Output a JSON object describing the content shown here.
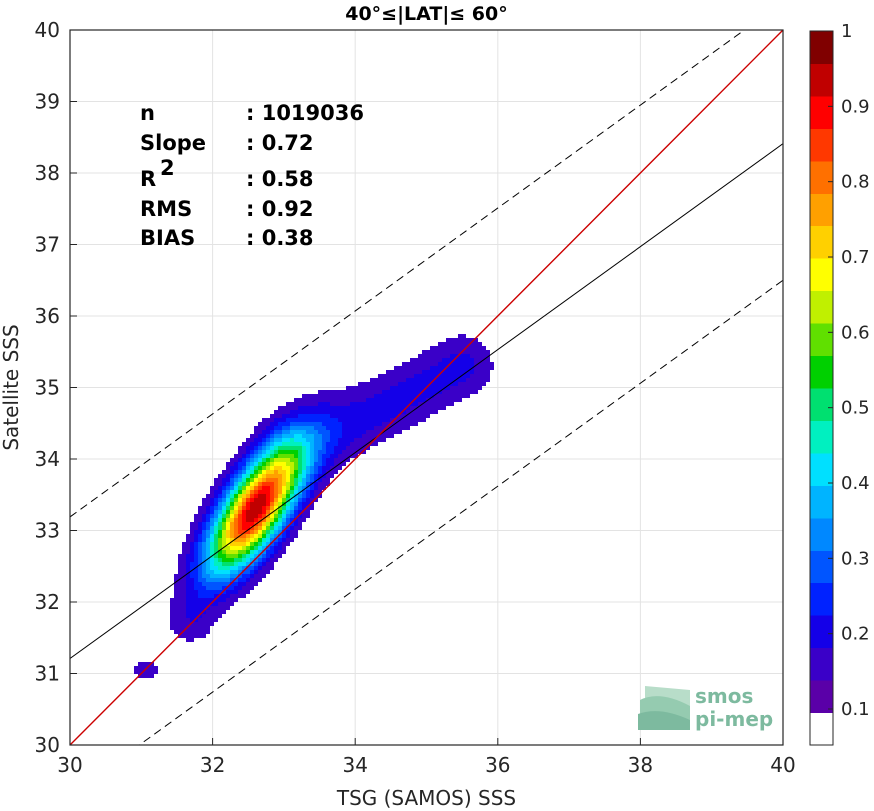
{
  "chart_data": {
    "type": "heatmap",
    "title": "40°≤|LAT|≤ 60°",
    "xlabel": "TSG (SAMOS) SSS",
    "ylabel": "Satellite SSS",
    "xlim": [
      30,
      40
    ],
    "ylim": [
      30,
      40
    ],
    "xticks": [
      "30",
      "32",
      "34",
      "36",
      "38",
      "40"
    ],
    "yticks": [
      "30",
      "31",
      "32",
      "33",
      "34",
      "35",
      "36",
      "37",
      "38",
      "39",
      "40"
    ],
    "grid": true,
    "stats": [
      {
        "label": "n",
        "sep": ": ",
        "value": "1019036"
      },
      {
        "label": "Slope",
        "sep": ": ",
        "value": "0.72"
      },
      {
        "label": "R",
        "sup": "2",
        "sep": ": ",
        "value": "0.58"
      },
      {
        "label": "RMS",
        "sep": ": ",
        "value": "0.92"
      },
      {
        "label": "BIAS",
        "sep": ": ",
        "value": "0.38"
      }
    ],
    "lines": {
      "identity": {
        "intercept": 0,
        "slope": 1,
        "color": "#cc0000"
      },
      "fit": {
        "slope": 0.72,
        "intercept": 9.61,
        "color": "#000000"
      },
      "offset_bounds": [
        {
          "slope": 0.72,
          "intercept": 11.59,
          "style": "dashed"
        },
        {
          "slope": 0.72,
          "intercept": 7.7,
          "style": "dashed"
        }
      ]
    },
    "density": {
      "center": [
        32.6,
        33.3
      ],
      "major_direction": [
        0.55,
        0.84
      ],
      "sigma_major": 0.72,
      "sigma_minor": 0.28,
      "tail": {
        "start": [
          33.2,
          34.1
        ],
        "end": [
          35.5,
          35.3
        ],
        "weight": 0.12
      },
      "low_blob": {
        "center": [
          31.05,
          31.05
        ],
        "weight": 0.07
      }
    },
    "colorbar": {
      "ticks": [
        "0.1",
        "0.2",
        "0.3",
        "0.4",
        "0.5",
        "0.6",
        "0.7",
        "0.8",
        "0.9",
        "1"
      ],
      "levels": 20,
      "range": [
        0,
        1
      ],
      "colors": [
        "#ffffff",
        "#5a00a8",
        "#3a00c8",
        "#1400e8",
        "#0022ff",
        "#0055ff",
        "#0088ff",
        "#00b4ff",
        "#00e0ff",
        "#00f0c0",
        "#00e070",
        "#00d000",
        "#60e000",
        "#c0f000",
        "#ffff00",
        "#ffd000",
        "#ffa000",
        "#ff7000",
        "#ff3800",
        "#ff0000",
        "#c00000",
        "#800000"
      ]
    }
  },
  "logo": {
    "line1": "smos",
    "line2": "pi-mep"
  }
}
